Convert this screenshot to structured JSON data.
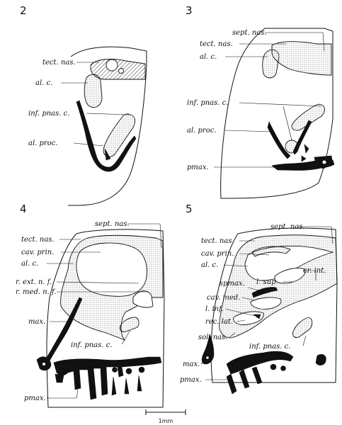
{
  "panels": [
    {
      "number": "2",
      "labels": [
        "tect. nas.",
        "al. c.",
        "inf. pnas. c.",
        "al. proc."
      ]
    },
    {
      "number": "3",
      "labels": [
        "sept. nas.",
        "tect. nas.",
        "al. c.",
        "inf. pnas. c.",
        "al. proc.",
        "pmax."
      ]
    },
    {
      "number": "4",
      "labels": [
        "sept. nas.",
        "tect. nas.",
        "cav. prin.",
        "al. c.",
        "r. ext. n. f.",
        "r. med. n. f.",
        "max.",
        "inf. pnas. c.",
        "pmax."
      ]
    },
    {
      "number": "5",
      "labels": [
        "sept. nas.",
        "tect. nas.",
        "cav. prin.",
        "al. c.",
        "cr. int.",
        "spmax.",
        "l. sup.",
        "cav. med.",
        "l. inf.",
        "rec. lat.",
        "sol. nas.",
        "inf. pnas. c.",
        "max.",
        "pmax."
      ]
    }
  ],
  "scale_bar": {
    "label": "1mm"
  }
}
